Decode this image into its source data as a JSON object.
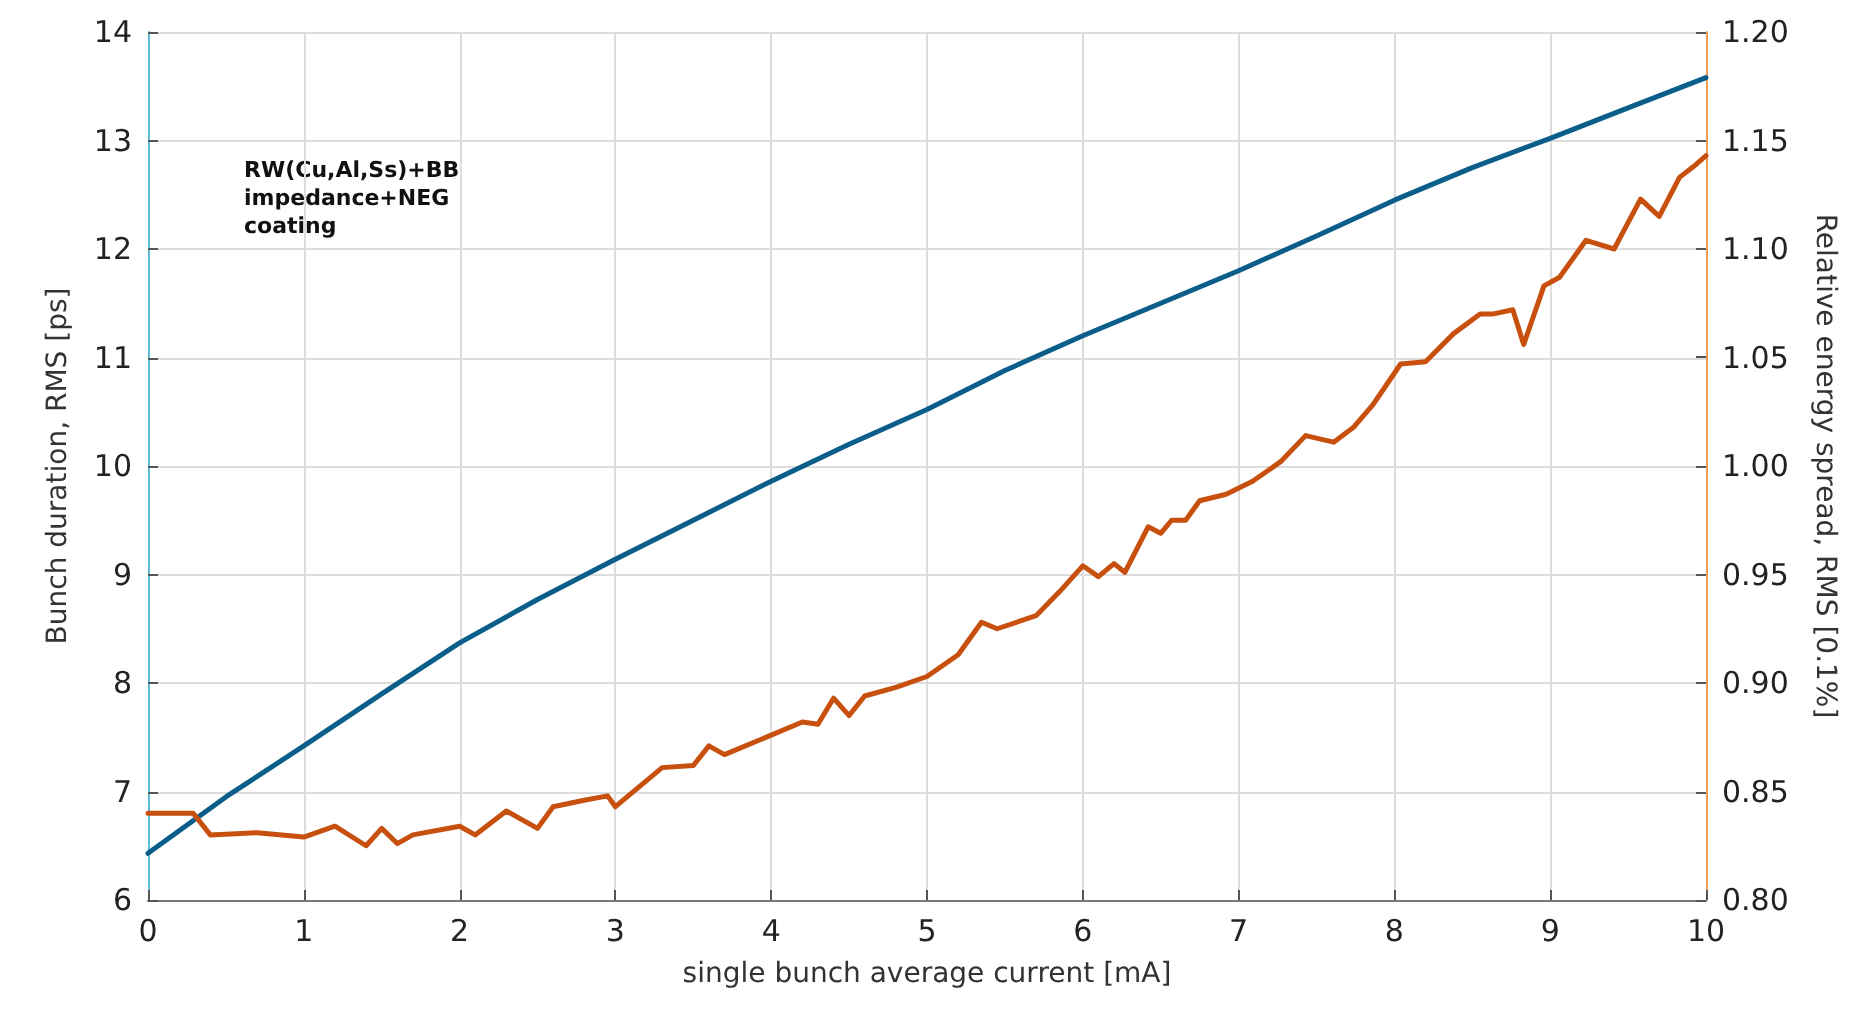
{
  "chart_data": {
    "type": "line",
    "xlabel": "single bunch average current [mA]",
    "ylabel": "Bunch duration, RMS [ps]",
    "y2label": "Relative energy spread, RMS [0.1%]",
    "annotations": [
      "RW(Cu,Al,Ss)+BB impedance+NEG coating"
    ],
    "xlim": [
      0,
      10
    ],
    "xticks": [
      0,
      1,
      2,
      3,
      4,
      5,
      6,
      7,
      8,
      9,
      10
    ],
    "ylim": [
      6,
      14
    ],
    "yticks": [
      6,
      7,
      8,
      9,
      10,
      11,
      12,
      13,
      14
    ],
    "y2lim": [
      0.8,
      1.2
    ],
    "y2ticks": [
      {
        "value": 0.8,
        "label": "0.80"
      },
      {
        "value": 0.85,
        "label": "0.85"
      },
      {
        "value": 0.9,
        "label": "0.90"
      },
      {
        "value": 0.95,
        "label": "0.95"
      },
      {
        "value": 1.0,
        "label": "1.00"
      },
      {
        "value": 1.05,
        "label": "1.05"
      },
      {
        "value": 1.1,
        "label": "1.10"
      },
      {
        "value": 1.15,
        "label": "1.15"
      },
      {
        "value": 1.2,
        "label": "1.20"
      }
    ],
    "grid": true,
    "marker": "none",
    "line_style": "solid",
    "series": [
      {
        "color": "#0b5e8a",
        "x": [
          0,
          0.5,
          1,
          1.5,
          2,
          2.5,
          3,
          3.5,
          4,
          4.5,
          5,
          5.5,
          6,
          6.5,
          7,
          7.5,
          8,
          8.5,
          9,
          9.5,
          10
        ],
        "values": [
          6.43,
          6.95,
          7.42,
          7.9,
          8.37,
          8.77,
          9.14,
          9.5,
          9.86,
          10.2,
          10.52,
          10.88,
          11.2,
          11.5,
          11.8,
          12.12,
          12.45,
          12.75,
          13.02,
          13.3,
          13.58
        ]
      },
      {
        "color": "#c8500f",
        "axis": "y2",
        "x": [
          0,
          0.29,
          0.4,
          0.7,
          1,
          1.2,
          1.4,
          1.5,
          1.6,
          1.7,
          2,
          2.1,
          2.3,
          2.5,
          2.6,
          2.8,
          2.95,
          3.0,
          3.3,
          3.5,
          3.6,
          3.7,
          4,
          4.2,
          4.3,
          4.4,
          4.5,
          4.6,
          4.8,
          5,
          5.2,
          5.35,
          5.45,
          5.7,
          5.85,
          6.0,
          6.1,
          6.2,
          6.27,
          6.42,
          6.5,
          6.57,
          6.66,
          6.75,
          6.92,
          7.09,
          7.27,
          7.43,
          7.61,
          7.74,
          7.86,
          8.04,
          8.2,
          8.38,
          8.55,
          8.63,
          8.76,
          8.83,
          8.96,
          9.06,
          9.23,
          9.41,
          9.58,
          9.7,
          9.83,
          9.92,
          10
        ],
        "values": [
          0.84,
          0.84,
          0.83,
          0.831,
          0.829,
          0.834,
          0.825,
          0.833,
          0.826,
          0.83,
          0.834,
          0.83,
          0.841,
          0.833,
          0.843,
          0.846,
          0.848,
          0.843,
          0.861,
          0.862,
          0.871,
          0.867,
          0.876,
          0.882,
          0.881,
          0.893,
          0.885,
          0.894,
          0.898,
          0.903,
          0.913,
          0.928,
          0.925,
          0.931,
          0.942,
          0.954,
          0.949,
          0.955,
          0.951,
          0.972,
          0.969,
          0.975,
          0.975,
          0.984,
          0.987,
          0.993,
          1.002,
          1.014,
          1.011,
          1.018,
          1.028,
          1.047,
          1.048,
          1.061,
          1.07,
          1.07,
          1.072,
          1.056,
          1.083,
          1.087,
          1.104,
          1.1,
          1.123,
          1.115,
          1.133,
          1.138,
          1.143
        ]
      }
    ]
  }
}
